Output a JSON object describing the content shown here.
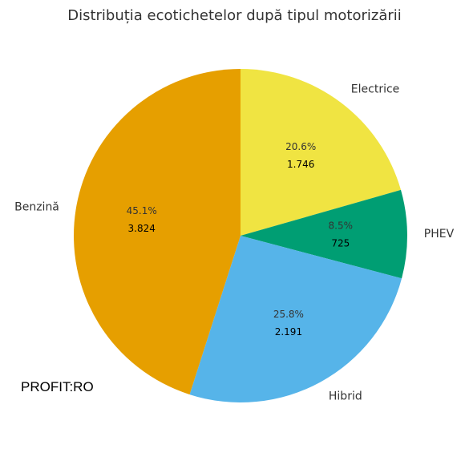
{
  "chart_data": {
    "type": "pie",
    "title": "Distribuția ecotichetelor după tipul motorizării",
    "slices": [
      {
        "label": "Electrice",
        "value": 1746,
        "value_label": "1.746",
        "percent_label": "20.6%",
        "color": "#F0E442"
      },
      {
        "label": "PHEV",
        "value": 725,
        "value_label": "725",
        "percent_label": "8.5%",
        "color": "#009E73"
      },
      {
        "label": "Hibrid",
        "value": 2191,
        "value_label": "2.191",
        "percent_label": "25.8%",
        "color": "#56B4E9"
      },
      {
        "label": "Benzină",
        "value": 3824,
        "value_label": "3.824",
        "percent_label": "45.1%",
        "color": "#E69F00"
      }
    ],
    "start_angle": "top",
    "direction": "clockwise"
  },
  "watermark": {
    "text": "PROFIT:RO"
  }
}
